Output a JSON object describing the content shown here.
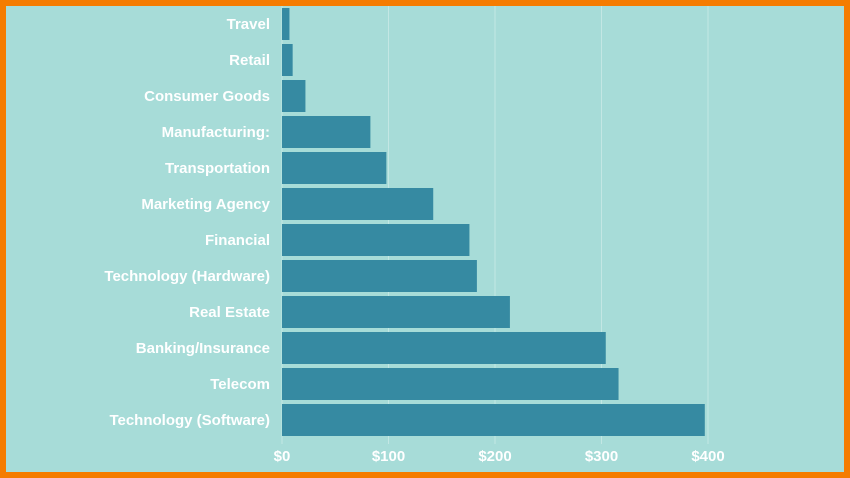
{
  "chart_data": {
    "type": "bar",
    "orientation": "horizontal",
    "title": "",
    "xlabel": "",
    "ylabel": "",
    "categories": [
      "Travel",
      "Retail",
      "Consumer Goods",
      "Manufacturing:",
      "Transportation",
      "Marketing Agency",
      "Financial",
      "Technology (Hardware)",
      "Real Estate",
      "Banking/Insurance",
      "Telecom",
      "Technology (Software)"
    ],
    "values": [
      7,
      10,
      22,
      83,
      98,
      142,
      176,
      183,
      214,
      304,
      316,
      397
    ],
    "x_ticks": [
      0,
      100,
      200,
      300,
      400
    ],
    "x_tick_labels": [
      "$0",
      "$100",
      "$200",
      "$300",
      "$400"
    ],
    "xlim": [
      0,
      400
    ],
    "grid": "vertical",
    "colors": {
      "bar": "#368aa2",
      "background": "#a7dcd8",
      "frame": "#f57c00",
      "grid": "#c3e7e4",
      "text": "#ffffff"
    }
  }
}
